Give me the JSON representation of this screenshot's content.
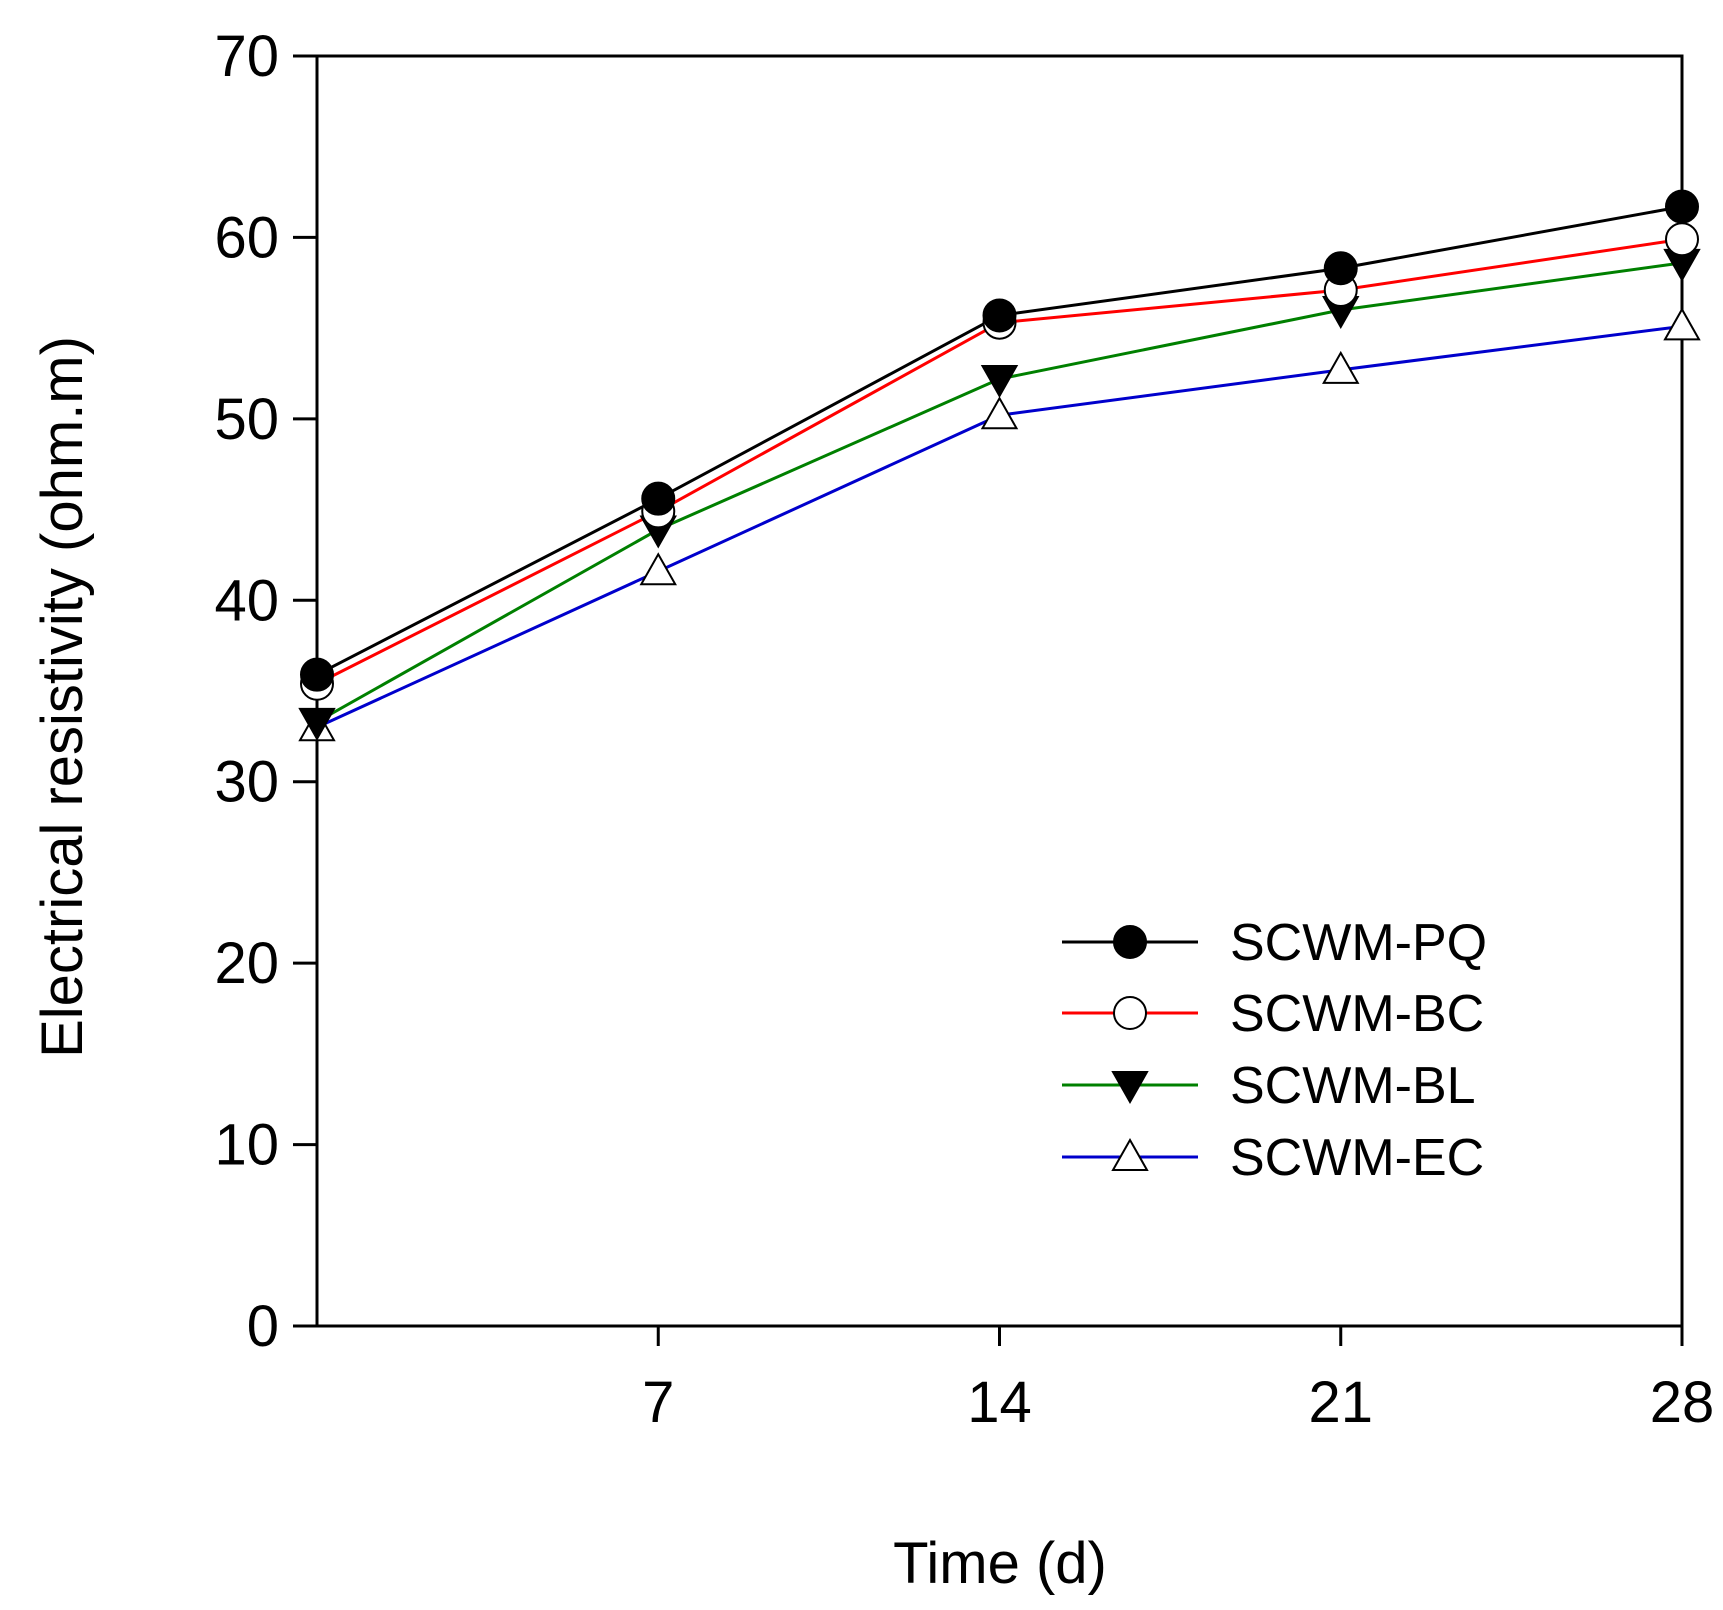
{
  "chart_data": {
    "type": "line",
    "title": "",
    "xlabel": "Time (d)",
    "ylabel": "Electrical resistivity (ohm.m)",
    "xlim": [
      0,
      28
    ],
    "ylim": [
      0,
      70
    ],
    "x_ticks": [
      7,
      14,
      21,
      28
    ],
    "y_ticks": [
      0,
      10,
      20,
      30,
      40,
      50,
      60,
      70
    ],
    "x_tick_labels": [
      "7",
      "14",
      "21",
      "28"
    ],
    "y_tick_labels": [
      "0",
      "10",
      "20",
      "30",
      "40",
      "50",
      "60",
      "70"
    ],
    "grid": false,
    "legend_position": "bottom-right",
    "x": [
      0,
      7,
      14,
      21,
      28
    ],
    "series": [
      {
        "name": "SCWM-PQ",
        "values": [
          35.9,
          45.6,
          55.7,
          58.3,
          61.7
        ],
        "color": "#000000",
        "marker": "filled-circle"
      },
      {
        "name": "SCWM-BC",
        "values": [
          35.4,
          44.9,
          55.3,
          57.1,
          59.9
        ],
        "color": "#ff0000",
        "marker": "open-circle"
      },
      {
        "name": "SCWM-BL",
        "values": [
          33.3,
          43.9,
          52.2,
          56.0,
          58.6
        ],
        "color": "#008000",
        "marker": "filled-triangle-down"
      },
      {
        "name": "SCWM-EC",
        "values": [
          33.0,
          41.6,
          50.2,
          52.7,
          55.1
        ],
        "color": "#0000cc",
        "marker": "open-triangle-up"
      }
    ]
  }
}
